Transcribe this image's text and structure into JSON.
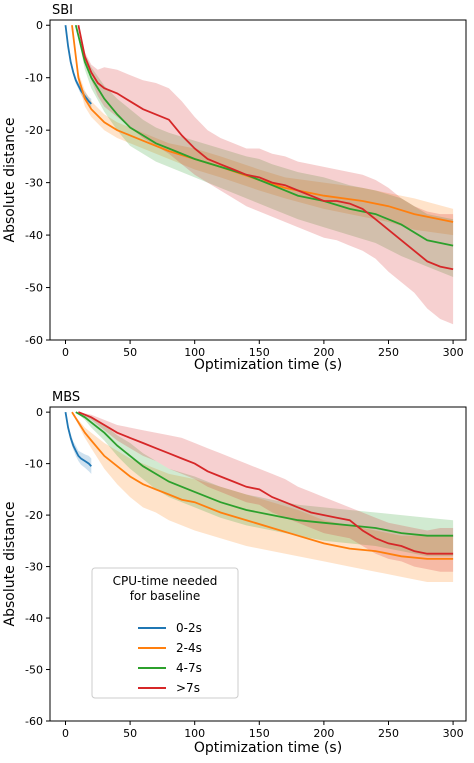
{
  "chart_data": [
    {
      "type": "line",
      "title": "SBI",
      "xlabel": "Optimization time (s)",
      "ylabel": "Absolute distance",
      "xlim": [
        -12,
        310
      ],
      "ylim": [
        -60,
        1
      ],
      "xticks": [
        0,
        50,
        100,
        150,
        200,
        250,
        300
      ],
      "yticks": [
        0,
        -10,
        -20,
        -30,
        -40,
        -50,
        -60
      ],
      "grid": false,
      "series": [
        {
          "name": "0-2s",
          "color": "#1f77b4",
          "x": [
            0,
            2,
            4,
            6,
            8,
            10,
            12,
            15,
            18,
            20
          ],
          "y": [
            0,
            -4,
            -7,
            -9,
            -10.5,
            -11.5,
            -12.5,
            -13.5,
            -14.5,
            -15
          ],
          "lower": [
            0,
            -4.5,
            -7.6,
            -9.6,
            -11.1,
            -12.1,
            -13.3,
            -14.3,
            -15.3,
            -16
          ],
          "upper": [
            0,
            -3.5,
            -6.4,
            -8.4,
            -9.9,
            -10.9,
            -11.7,
            -12.7,
            -13.7,
            -14
          ]
        },
        {
          "name": "2-4s",
          "color": "#ff7f0e",
          "x": [
            5,
            10,
            15,
            20,
            30,
            40,
            50,
            60,
            80,
            100,
            120,
            150,
            170,
            200,
            230,
            250,
            270,
            300
          ],
          "y": [
            0,
            -10,
            -14,
            -16,
            -18.5,
            -20,
            -21,
            -22,
            -24,
            -25.5,
            -27,
            -29.5,
            -31,
            -32.5,
            -33.5,
            -34.5,
            -36,
            -37.5
          ],
          "lower": [
            0,
            -11,
            -15.5,
            -17.5,
            -20,
            -21.5,
            -22.5,
            -23.5,
            -25.5,
            -27.5,
            -29,
            -31.5,
            -33,
            -35,
            -36.5,
            -37.5,
            -39,
            -40
          ],
          "upper": [
            0,
            -9,
            -12.5,
            -14.5,
            -17,
            -18.5,
            -19.5,
            -20.5,
            -22.5,
            -23.5,
            -25,
            -27.5,
            -29,
            -30,
            -31,
            -32,
            -33,
            -35
          ]
        },
        {
          "name": "4-7s",
          "color": "#2ca02c",
          "x": [
            8,
            15,
            20,
            30,
            40,
            50,
            60,
            70,
            80,
            100,
            120,
            140,
            150,
            160,
            180,
            200,
            220,
            240,
            260,
            280,
            300
          ],
          "y": [
            0,
            -7,
            -10,
            -14,
            -17,
            -19.5,
            -21,
            -22.5,
            -23.5,
            -25.5,
            -27,
            -28.5,
            -29.5,
            -30.5,
            -32.5,
            -33.5,
            -35,
            -36,
            -38,
            -41,
            -42
          ],
          "lower": [
            0,
            -8.5,
            -12,
            -16.5,
            -20,
            -23,
            -24.5,
            -26,
            -27,
            -29,
            -31,
            -33,
            -34,
            -35,
            -37,
            -38.5,
            -40,
            -41.5,
            -44,
            -46,
            -48
          ],
          "upper": [
            0,
            -5.5,
            -8,
            -11.5,
            -14,
            -16,
            -18,
            -19.5,
            -20.5,
            -22,
            -23.5,
            -25,
            -25.5,
            -26.5,
            -28,
            -29,
            -30.5,
            -31.5,
            -33,
            -36,
            -37
          ]
        },
        {
          "name": ">7s",
          "color": "#d62728",
          "x": [
            10,
            15,
            20,
            25,
            30,
            40,
            50,
            60,
            70,
            80,
            90,
            100,
            110,
            120,
            130,
            140,
            150,
            160,
            170,
            180,
            190,
            200,
            210,
            220,
            230,
            240,
            250,
            260,
            270,
            280,
            290,
            300
          ],
          "y": [
            0,
            -6,
            -9,
            -11,
            -12,
            -13,
            -14.5,
            -16,
            -17,
            -18,
            -21,
            -23.5,
            -25.5,
            -26.5,
            -27.5,
            -28.5,
            -29,
            -30,
            -30.5,
            -31.5,
            -32.5,
            -33.5,
            -33.5,
            -34,
            -35,
            -37,
            -39,
            -41,
            -43,
            -45,
            -46,
            -46.5
          ],
          "lower": [
            0,
            -6.8,
            -10.5,
            -13.5,
            -15.5,
            -17.5,
            -19.5,
            -21.5,
            -23,
            -24.5,
            -26.5,
            -28.5,
            -30,
            -31.5,
            -33,
            -34.5,
            -35.5,
            -36.5,
            -37.5,
            -38.5,
            -39.5,
            -40.5,
            -41,
            -42,
            -43,
            -44.5,
            -47,
            -49,
            -51,
            -54,
            -56,
            -57
          ],
          "upper": [
            0,
            -5.2,
            -7.5,
            -8.5,
            -8,
            -8.5,
            -9.5,
            -10.5,
            -11,
            -12,
            -14.5,
            -17.5,
            -20,
            -21.5,
            -22.5,
            -23.5,
            -23.5,
            -24.5,
            -25,
            -26,
            -26.5,
            -27,
            -27.5,
            -28,
            -28.5,
            -29.5,
            -31,
            -33,
            -34.5,
            -35.5,
            -36,
            -36
          ]
        }
      ]
    },
    {
      "type": "line",
      "title": "MBS",
      "xlabel": "Optimization time (s)",
      "ylabel": "Absolute distance",
      "xlim": [
        -12,
        310
      ],
      "ylim": [
        -60,
        1
      ],
      "xticks": [
        0,
        50,
        100,
        150,
        200,
        250,
        300
      ],
      "yticks": [
        0,
        -10,
        -20,
        -30,
        -40,
        -50,
        -60
      ],
      "grid": false,
      "legend": {
        "title": "CPU-time needed\nfor baseline",
        "position": "lower-left",
        "entries": [
          "0-2s",
          "2-4s",
          "4-7s",
          ">7s"
        ]
      },
      "series": [
        {
          "name": "0-2s",
          "color": "#1f77b4",
          "x": [
            0,
            2,
            4,
            6,
            8,
            10,
            12,
            15,
            18,
            20
          ],
          "y": [
            0,
            -3,
            -5,
            -6.5,
            -7.5,
            -8.5,
            -9,
            -9.5,
            -10,
            -10.5
          ],
          "lower": [
            0,
            -3.6,
            -5.8,
            -7.3,
            -8.5,
            -9.5,
            -10.2,
            -10.8,
            -11.5,
            -12
          ],
          "upper": [
            0,
            -2.4,
            -4.2,
            -5.7,
            -6.5,
            -7.5,
            -7.8,
            -8.2,
            -8.5,
            -9
          ]
        },
        {
          "name": "2-4s",
          "color": "#ff7f0e",
          "x": [
            5,
            10,
            15,
            20,
            30,
            40,
            50,
            60,
            70,
            80,
            90,
            100,
            120,
            140,
            160,
            180,
            200,
            220,
            240,
            260,
            280,
            300
          ],
          "y": [
            0,
            -2,
            -4,
            -5.5,
            -8.5,
            -10.5,
            -12.5,
            -14,
            -15,
            -16,
            -17,
            -17.5,
            -19.5,
            -21,
            -22.5,
            -24,
            -25.5,
            -26.5,
            -27,
            -28,
            -28.5,
            -28.5
          ],
          "lower": [
            0,
            -2.5,
            -5,
            -7,
            -11,
            -14,
            -16.5,
            -18.5,
            -19.5,
            -21,
            -22,
            -23,
            -24.5,
            -26,
            -27,
            -28,
            -29,
            -30,
            -31,
            -32,
            -33,
            -33
          ],
          "upper": [
            0,
            -1.5,
            -3,
            -4,
            -6,
            -7.5,
            -9,
            -10,
            -11,
            -12,
            -12.5,
            -13,
            -14.5,
            -16,
            -17.5,
            -19,
            -21,
            -22,
            -23,
            -24,
            -24,
            -24
          ]
        },
        {
          "name": "4-7s",
          "color": "#2ca02c",
          "x": [
            8,
            15,
            20,
            30,
            40,
            50,
            60,
            70,
            80,
            100,
            120,
            140,
            160,
            180,
            200,
            220,
            240,
            260,
            280,
            300
          ],
          "y": [
            0,
            -1,
            -2,
            -4,
            -6.5,
            -8.5,
            -10.5,
            -12,
            -13.5,
            -15.5,
            -17.5,
            -19,
            -20,
            -21,
            -21.5,
            -22,
            -22.5,
            -23.5,
            -24,
            -24
          ],
          "lower": [
            0,
            -1.5,
            -3,
            -5.5,
            -8.5,
            -11,
            -13,
            -15,
            -16.5,
            -18.5,
            -20.5,
            -22,
            -23,
            -24,
            -25,
            -25.5,
            -26,
            -27,
            -28,
            -28
          ],
          "upper": [
            0,
            -0.5,
            -1,
            -2.5,
            -4.5,
            -6,
            -8,
            -9.5,
            -11,
            -12.5,
            -14.5,
            -16,
            -17,
            -18,
            -18.5,
            -19,
            -19.5,
            -20,
            -20.5,
            -21
          ]
        },
        {
          "name": ">7s",
          "color": "#d62728",
          "x": [
            10,
            20,
            30,
            40,
            50,
            60,
            70,
            80,
            90,
            100,
            110,
            120,
            130,
            140,
            150,
            160,
            170,
            180,
            190,
            200,
            210,
            220,
            230,
            240,
            250,
            260,
            270,
            280,
            290,
            300
          ],
          "y": [
            0,
            -1,
            -2.5,
            -4,
            -5,
            -6,
            -7,
            -8,
            -9,
            -10,
            -11.5,
            -12.5,
            -13.5,
            -14.5,
            -15,
            -16.5,
            -17.5,
            -18.5,
            -19.5,
            -20,
            -20.5,
            -21,
            -23,
            -24.5,
            -25.5,
            -26,
            -27,
            -27.5,
            -27.5,
            -27.5
          ],
          "lower": [
            0,
            -1.5,
            -3.5,
            -5.5,
            -7,
            -8.5,
            -9.5,
            -11,
            -12,
            -13,
            -14.5,
            -15.5,
            -16.5,
            -17.5,
            -18,
            -19.5,
            -20.5,
            -21.5,
            -22.5,
            -23.5,
            -24,
            -24.5,
            -26,
            -27.5,
            -28.5,
            -29,
            -30,
            -30.5,
            -31,
            -31
          ],
          "upper": [
            0,
            -0.5,
            -1.5,
            -2.5,
            -3,
            -3.5,
            -4,
            -4.5,
            -5,
            -6,
            -7,
            -8,
            -9,
            -10,
            -11,
            -12,
            -13,
            -14.5,
            -15.5,
            -16.5,
            -17.5,
            -18.5,
            -19.5,
            -20.5,
            -21.5,
            -22,
            -22.5,
            -23,
            -22.5,
            -22.5
          ]
        }
      ]
    }
  ]
}
